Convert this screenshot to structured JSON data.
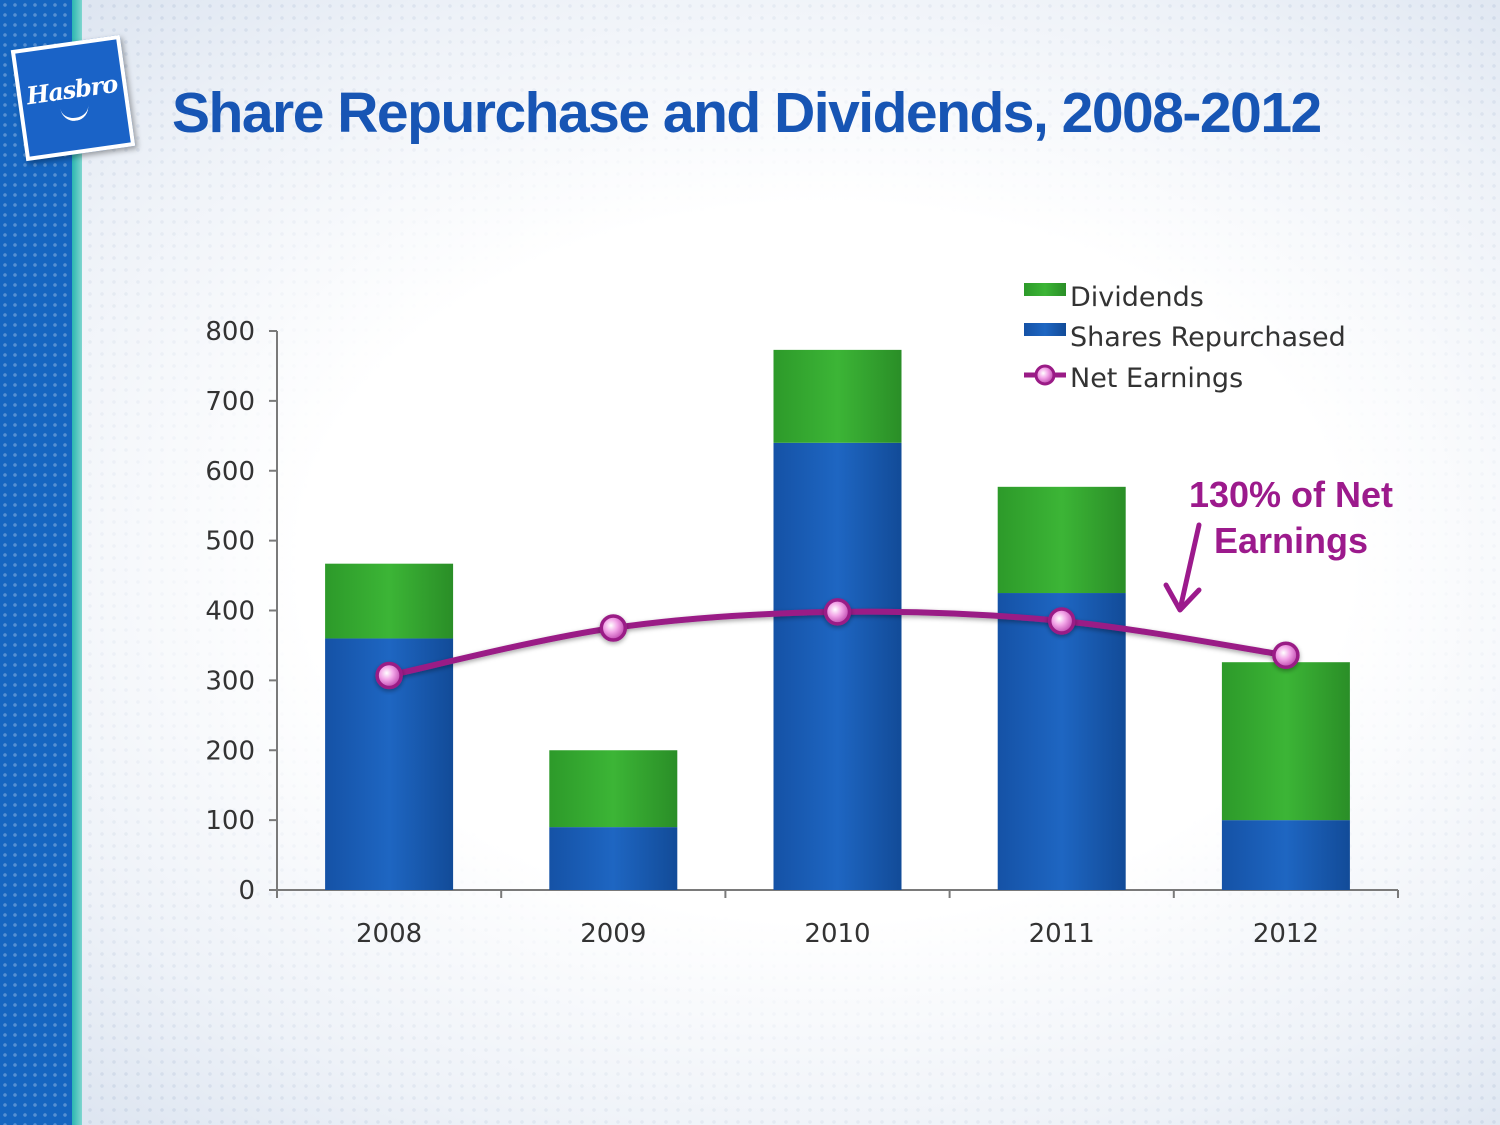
{
  "slide": {
    "title": "Share Repurchase and Dividends, 2008-2012",
    "logo_text": "Hasbro"
  },
  "chart_data": {
    "type": "bar",
    "stacked": true,
    "categories": [
      "2008",
      "2009",
      "2010",
      "2011",
      "2012"
    ],
    "series": [
      {
        "name": "Shares Repurchased",
        "type": "bar",
        "color": "#1a5eb4",
        "values": [
          360,
          90,
          640,
          425,
          100
        ]
      },
      {
        "name": "Dividends",
        "type": "bar",
        "color": "#34a52f",
        "values": [
          107,
          110,
          133,
          152,
          226
        ]
      },
      {
        "name": "Net Earnings",
        "type": "line",
        "color": "#9a1b86",
        "values": [
          307,
          375,
          398,
          385,
          336
        ]
      }
    ],
    "legend": [
      "Dividends",
      "Shares Repurchased",
      "Net Earnings"
    ],
    "legend_position": "top-right",
    "ylim": [
      0,
      800
    ],
    "yticks": [
      "0",
      "100",
      "200",
      "300",
      "400",
      "500",
      "600",
      "700",
      "800"
    ],
    "grid": false,
    "annotation": {
      "lines": [
        "130% of Net",
        "Earnings"
      ],
      "color": "#9c1a8c"
    }
  }
}
